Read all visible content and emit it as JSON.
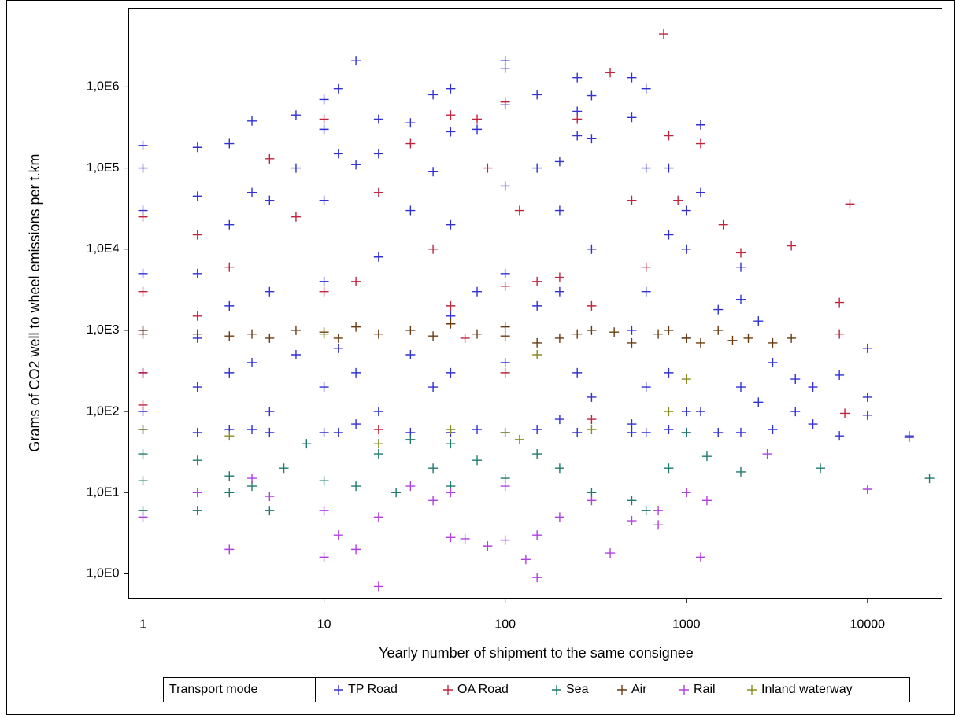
{
  "chart_data": {
    "type": "scatter",
    "x_label": "Yearly number of shipment to the same consignee",
    "y_label": "Grams of CO2 well to wheel emissions per t.km",
    "x_log": true,
    "y_log": true,
    "xlim": [
      0.835,
      25800
    ],
    "ylim": [
      0.5,
      9300000
    ],
    "xticks": [
      1,
      10,
      100,
      1000,
      10000
    ],
    "yticks": [
      {
        "value": 1,
        "label": "1,0E0"
      },
      {
        "value": 10,
        "label": "1,0E1"
      },
      {
        "value": 100,
        "label": "1,0E2"
      },
      {
        "value": 1000,
        "label": "1,0E3"
      },
      {
        "value": 10000,
        "label": "1,0E4"
      },
      {
        "value": 100000,
        "label": "1,0E5"
      },
      {
        "value": 1000000,
        "label": "1,0E6"
      }
    ],
    "legend_title": "Transport mode",
    "legend_position": "bottom",
    "series": [
      {
        "name": "TP Road",
        "color": "#3131d4",
        "x": [
          1,
          1,
          1,
          1,
          1,
          1,
          1,
          1,
          2,
          2,
          2,
          2,
          2,
          2,
          3,
          3,
          3,
          3,
          3,
          4,
          4,
          4,
          4,
          5,
          5,
          5,
          5,
          7,
          7,
          7,
          10,
          10,
          10,
          10,
          10,
          10,
          12,
          12,
          12,
          12,
          15,
          15,
          15,
          15,
          20,
          20,
          20,
          20,
          30,
          30,
          30,
          30,
          40,
          40,
          40,
          50,
          50,
          50,
          50,
          50,
          50,
          70,
          70,
          70,
          100,
          100,
          100,
          100,
          100,
          100,
          100,
          150,
          150,
          150,
          150,
          200,
          200,
          200,
          200,
          250,
          250,
          250,
          250,
          250,
          300,
          300,
          300,
          300,
          500,
          500,
          500,
          500,
          500,
          600,
          600,
          600,
          600,
          600,
          800,
          800,
          800,
          800,
          1000,
          1000,
          1000,
          1000,
          1000,
          1200,
          1200,
          1200,
          1500,
          1500,
          2000,
          2000,
          2000,
          2000,
          2500,
          2500,
          3000,
          3000,
          4000,
          4000,
          5000,
          5000,
          7000,
          7000,
          10000,
          10000,
          10000,
          17000,
          17000
        ],
        "values": [
          190000,
          100000,
          30000,
          5000,
          1000,
          300,
          100,
          60,
          180000,
          45000,
          5000,
          800,
          200,
          55,
          200000,
          20000,
          2000,
          300,
          60,
          380000,
          50000,
          400,
          60,
          40000,
          3000,
          100,
          55,
          450000,
          100000,
          500,
          700000,
          300000,
          40000,
          4000,
          200,
          55,
          950000,
          150000,
          600,
          55,
          2100000,
          110000,
          300,
          70,
          400000,
          150000,
          8000,
          100,
          360000,
          30000,
          500,
          55,
          800000,
          90000,
          200,
          950000,
          280000,
          20000,
          1500,
          300,
          55,
          300000,
          3000,
          60,
          2100000,
          1700000,
          600000,
          60000,
          5000,
          400,
          55,
          800000,
          100000,
          2000,
          60,
          120000,
          30000,
          3000,
          80,
          1300000,
          500000,
          250000,
          300,
          55,
          780000,
          230000,
          10000,
          150,
          1300000,
          420000,
          1000,
          70,
          55,
          950000,
          100000,
          3000,
          200,
          55,
          100000,
          15000,
          300,
          60,
          30000,
          10000,
          800,
          100,
          55,
          340000,
          50000,
          100,
          1800,
          55,
          6000,
          2400,
          200,
          55,
          1300,
          130,
          400,
          60,
          250,
          100,
          200,
          70,
          280,
          50,
          600,
          90,
          150,
          50,
          48
        ]
      },
      {
        "name": "OA Road",
        "color": "#c0253e",
        "x": [
          1,
          1,
          1,
          1,
          2,
          2,
          3,
          5,
          7,
          10,
          10,
          15,
          20,
          30,
          40,
          50,
          50,
          60,
          70,
          80,
          100,
          100,
          100,
          120,
          150,
          200,
          250,
          300,
          380,
          500,
          600,
          750,
          800,
          900,
          1200,
          1600,
          2000,
          3800,
          7000,
          7000,
          8000,
          7500,
          300,
          20
        ],
        "values": [
          25000,
          3000,
          300,
          120,
          15000,
          1500,
          6000,
          130000,
          25000,
          400000,
          3000,
          4000,
          50000,
          200000,
          10000,
          450000,
          2000,
          800,
          400000,
          100000,
          650000,
          3500,
          300,
          30000,
          4000,
          4500,
          400000,
          2000,
          1500000,
          40000,
          6000,
          4500000,
          250000,
          40000,
          200000,
          20000,
          9000,
          11000,
          2200,
          900,
          36000,
          95,
          80,
          60
        ]
      },
      {
        "name": "Sea",
        "color": "#1e7a6e",
        "x": [
          1,
          1,
          1,
          2,
          2,
          3,
          3,
          4,
          5,
          6,
          10,
          15,
          20,
          25,
          40,
          50,
          50,
          70,
          100,
          150,
          200,
          300,
          500,
          600,
          800,
          1000,
          1300,
          2000,
          5500,
          22000,
          8,
          30
        ],
        "values": [
          30,
          14,
          6,
          25,
          6,
          16,
          10,
          12,
          6,
          20,
          14,
          12,
          30,
          10,
          20,
          40,
          12,
          25,
          15,
          30,
          20,
          10,
          8,
          6,
          20,
          55,
          28,
          18,
          20,
          15,
          40,
          45
        ]
      },
      {
        "name": "Air",
        "color": "#6b3b10",
        "x": [
          1,
          1,
          2,
          3,
          4,
          5,
          7,
          10,
          12,
          15,
          20,
          30,
          40,
          50,
          70,
          100,
          100,
          150,
          200,
          250,
          300,
          400,
          500,
          700,
          800,
          1000,
          1200,
          1500,
          1800,
          2200,
          3000,
          3800
        ],
        "values": [
          900,
          1000,
          900,
          850,
          900,
          800,
          1000,
          950,
          800,
          1100,
          900,
          1000,
          850,
          1200,
          900,
          850,
          1100,
          700,
          800,
          900,
          1000,
          950,
          700,
          900,
          1000,
          800,
          700,
          1000,
          750,
          800,
          700,
          800
        ]
      },
      {
        "name": "Rail",
        "color": "#b040e0",
        "x": [
          1,
          2,
          3,
          4,
          5,
          10,
          10,
          12,
          15,
          20,
          20,
          30,
          40,
          50,
          50,
          60,
          80,
          100,
          100,
          130,
          150,
          150,
          200,
          300,
          380,
          500,
          700,
          1000,
          1200,
          1300,
          2800,
          10000,
          700
        ],
        "values": [
          5,
          10,
          2,
          15,
          9,
          1.6,
          6,
          3,
          2,
          0.7,
          5,
          12,
          8,
          2.8,
          10,
          2.7,
          2.2,
          2.6,
          12,
          1.5,
          0.9,
          3,
          5,
          8,
          1.8,
          4.5,
          4,
          10,
          1.6,
          8,
          30,
          11,
          6
        ]
      },
      {
        "name": "Inland waterway",
        "color": "#8a8a20",
        "x": [
          1,
          3,
          10,
          20,
          50,
          100,
          120,
          150,
          300,
          800,
          1000
        ],
        "values": [
          60,
          50,
          900,
          40,
          60,
          55,
          45,
          500,
          60,
          100,
          250
        ]
      }
    ]
  }
}
